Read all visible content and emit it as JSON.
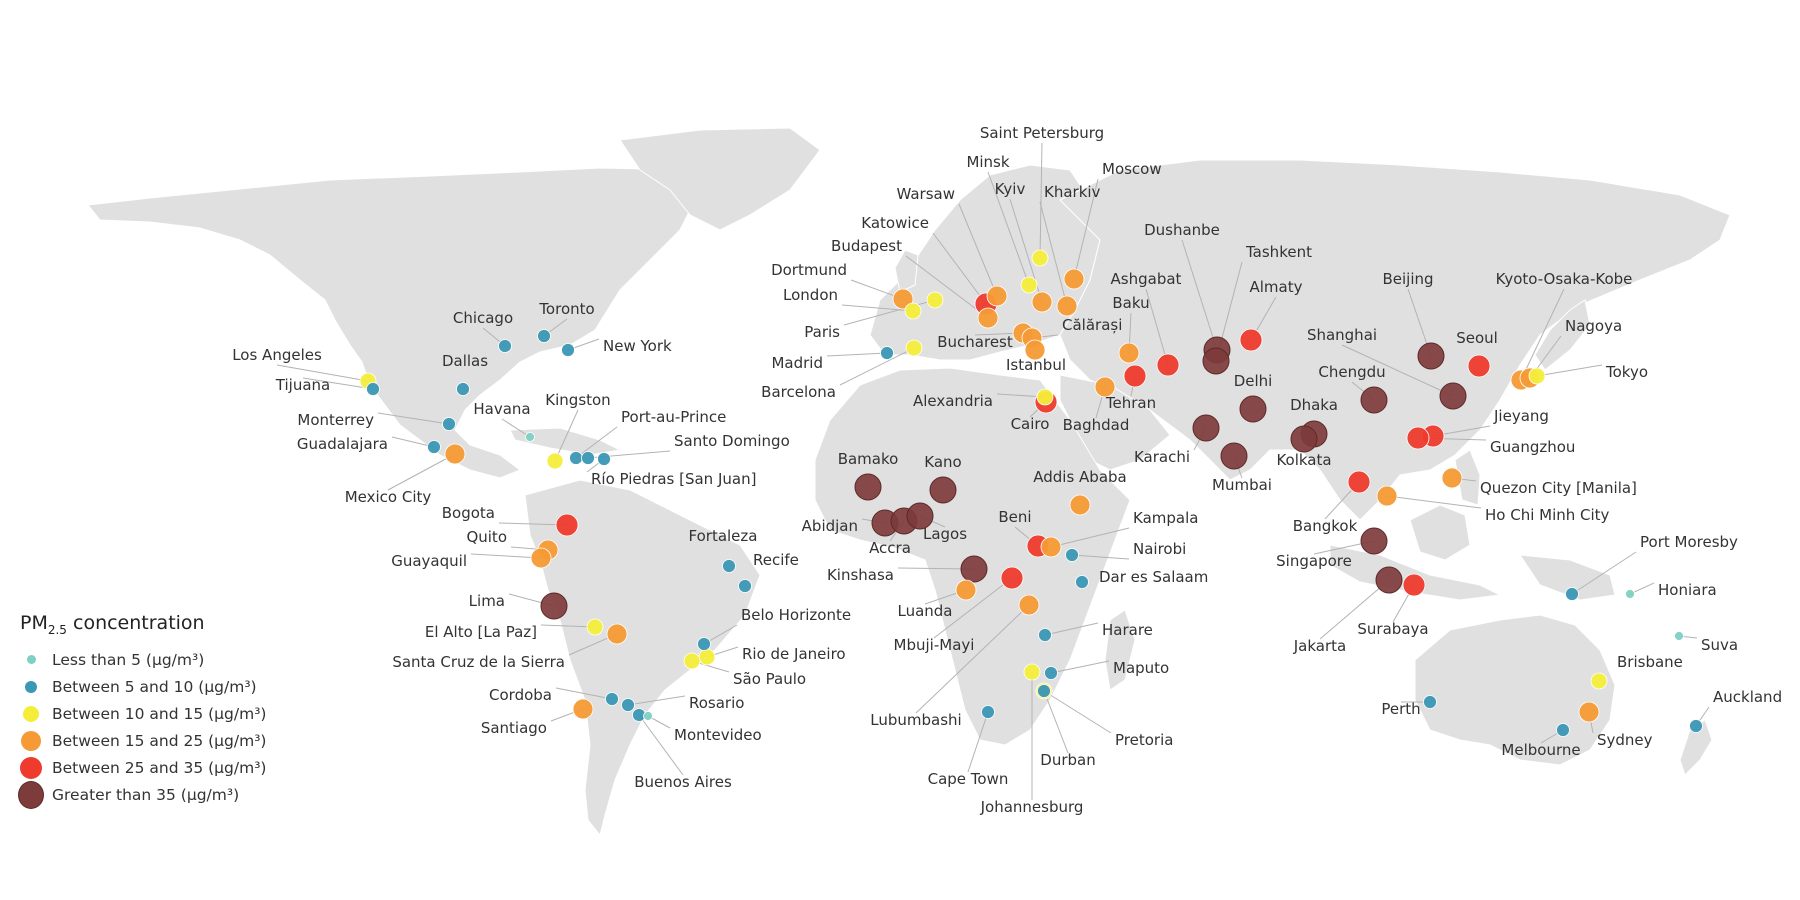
{
  "legend": {
    "title_prefix": "PM",
    "title_sub": "2.5",
    "title_suffix": " concentration",
    "categories": [
      {
        "label": "Less than 5 (μg/m³)",
        "color": "#7fd0c4"
      },
      {
        "label": "Between 5 and 10 (μg/m³)",
        "color": "#3a97b5"
      },
      {
        "label": "Between 10 and 15 (μg/m³)",
        "color": "#f4ed3a"
      },
      {
        "label": "Between 15 and 25 (μg/m³)",
        "color": "#f59a35"
      },
      {
        "label": "Between 25 and 35 (μg/m³)",
        "color": "#ee3b2d"
      },
      {
        "label": "Greater than 35 (μg/m³)",
        "color": "#7e3b3b"
      }
    ]
  },
  "cities": [
    {
      "name": "Los Angeles",
      "cat": 2
    },
    {
      "name": "Tijuana",
      "cat": 1
    },
    {
      "name": "Chicago",
      "cat": 1
    },
    {
      "name": "Toronto",
      "cat": 1
    },
    {
      "name": "New York",
      "cat": 1
    },
    {
      "name": "Dallas",
      "cat": 1
    },
    {
      "name": "Monterrey",
      "cat": 1
    },
    {
      "name": "Guadalajara",
      "cat": 1
    },
    {
      "name": "Mexico City",
      "cat": 3
    },
    {
      "name": "Havana",
      "cat": 0
    },
    {
      "name": "Kingston",
      "cat": 2
    },
    {
      "name": "Port-au-Prince",
      "cat": 1
    },
    {
      "name": "Santo Domingo",
      "cat": 1
    },
    {
      "name": "Río Piedras [San Juan]",
      "cat": 1
    },
    {
      "name": "Bogota",
      "cat": 4
    },
    {
      "name": "Quito",
      "cat": 3
    },
    {
      "name": "Guayaquil",
      "cat": 3
    },
    {
      "name": "Lima",
      "cat": 5
    },
    {
      "name": "El Alto [La Paz]",
      "cat": 2
    },
    {
      "name": "Santa Cruz de la Sierra",
      "cat": 3
    },
    {
      "name": "Fortaleza",
      "cat": 1
    },
    {
      "name": "Recife",
      "cat": 1
    },
    {
      "name": "Belo Horizonte",
      "cat": 1
    },
    {
      "name": "Rio de Janeiro",
      "cat": 2
    },
    {
      "name": "São Paulo",
      "cat": 2
    },
    {
      "name": "Cordoba",
      "cat": 1
    },
    {
      "name": "Rosario",
      "cat": 1
    },
    {
      "name": "Santiago",
      "cat": 3
    },
    {
      "name": "Montevideo",
      "cat": 0
    },
    {
      "name": "Buenos Aires",
      "cat": 1
    },
    {
      "name": "Saint Petersburg",
      "cat": 2
    },
    {
      "name": "Moscow",
      "cat": 3
    },
    {
      "name": "Minsk",
      "cat": 2
    },
    {
      "name": "Kyiv",
      "cat": 3
    },
    {
      "name": "Kharkiv",
      "cat": 3
    },
    {
      "name": "Warsaw",
      "cat": 3
    },
    {
      "name": "Katowice",
      "cat": 4
    },
    {
      "name": "Budapest",
      "cat": 3
    },
    {
      "name": "Dortmund",
      "cat": 3
    },
    {
      "name": "London",
      "cat": 2
    },
    {
      "name": "Paris",
      "cat": 2
    },
    {
      "name": "Madrid",
      "cat": 1
    },
    {
      "name": "Barcelona",
      "cat": 2
    },
    {
      "name": "Bucharest",
      "cat": 3
    },
    {
      "name": "Călărași",
      "cat": 3
    },
    {
      "name": "Istanbul",
      "cat": 3
    },
    {
      "name": "Alexandria",
      "cat": 2
    },
    {
      "name": "Cairo",
      "cat": 4
    },
    {
      "name": "Baghdad",
      "cat": 3
    },
    {
      "name": "Tehran",
      "cat": 4
    },
    {
      "name": "Baku",
      "cat": 3
    },
    {
      "name": "Ashgabat",
      "cat": 4
    },
    {
      "name": "Dushanbe",
      "cat": 5
    },
    {
      "name": "Tashkent",
      "cat": 5
    },
    {
      "name": "Almaty",
      "cat": 4
    },
    {
      "name": "Karachi",
      "cat": 5
    },
    {
      "name": "Delhi",
      "cat": 5
    },
    {
      "name": "Mumbai",
      "cat": 5
    },
    {
      "name": "Dhaka",
      "cat": 5
    },
    {
      "name": "Kolkata",
      "cat": 5
    },
    {
      "name": "Beijing",
      "cat": 5
    },
    {
      "name": "Shanghai",
      "cat": 5
    },
    {
      "name": "Chengdu",
      "cat": 5
    },
    {
      "name": "Seoul",
      "cat": 4
    },
    {
      "name": "Kyoto-Osaka-Kobe",
      "cat": 3
    },
    {
      "name": "Nagoya",
      "cat": 3
    },
    {
      "name": "Tokyo",
      "cat": 2
    },
    {
      "name": "Jieyang",
      "cat": 4
    },
    {
      "name": "Guangzhou",
      "cat": 4
    },
    {
      "name": "Quezon City [Manila]",
      "cat": 3
    },
    {
      "name": "Ho Chi Minh City",
      "cat": 3
    },
    {
      "name": "Bangkok",
      "cat": 4
    },
    {
      "name": "Singapore",
      "cat": 5
    },
    {
      "name": "Jakarta",
      "cat": 5
    },
    {
      "name": "Surabaya",
      "cat": 4
    },
    {
      "name": "Bamako",
      "cat": 5
    },
    {
      "name": "Kano",
      "cat": 5
    },
    {
      "name": "Abidjan",
      "cat": 5
    },
    {
      "name": "Accra",
      "cat": 5
    },
    {
      "name": "Lagos",
      "cat": 5
    },
    {
      "name": "Addis Ababa",
      "cat": 3
    },
    {
      "name": "Beni",
      "cat": 4
    },
    {
      "name": "Kampala",
      "cat": 3
    },
    {
      "name": "Nairobi",
      "cat": 1
    },
    {
      "name": "Kinshasa",
      "cat": 5
    },
    {
      "name": "Dar es Salaam",
      "cat": 1
    },
    {
      "name": "Luanda",
      "cat": 3
    },
    {
      "name": "Mbuji-Mayi",
      "cat": 4
    },
    {
      "name": "Lubumbashi",
      "cat": 3
    },
    {
      "name": "Harare",
      "cat": 1
    },
    {
      "name": "Maputo",
      "cat": 1
    },
    {
      "name": "Johannesburg",
      "cat": 2
    },
    {
      "name": "Pretoria",
      "cat": 2
    },
    {
      "name": "Durban",
      "cat": 1
    },
    {
      "name": "Cape Town",
      "cat": 1
    },
    {
      "name": "Port Moresby",
      "cat": 1
    },
    {
      "name": "Honiara",
      "cat": 0
    },
    {
      "name": "Suva",
      "cat": 0
    },
    {
      "name": "Brisbane",
      "cat": 2
    },
    {
      "name": "Perth",
      "cat": 1
    },
    {
      "name": "Sydney",
      "cat": 3
    },
    {
      "name": "Melbourne",
      "cat": 1
    },
    {
      "name": "Auckland",
      "cat": 1
    }
  ]
}
